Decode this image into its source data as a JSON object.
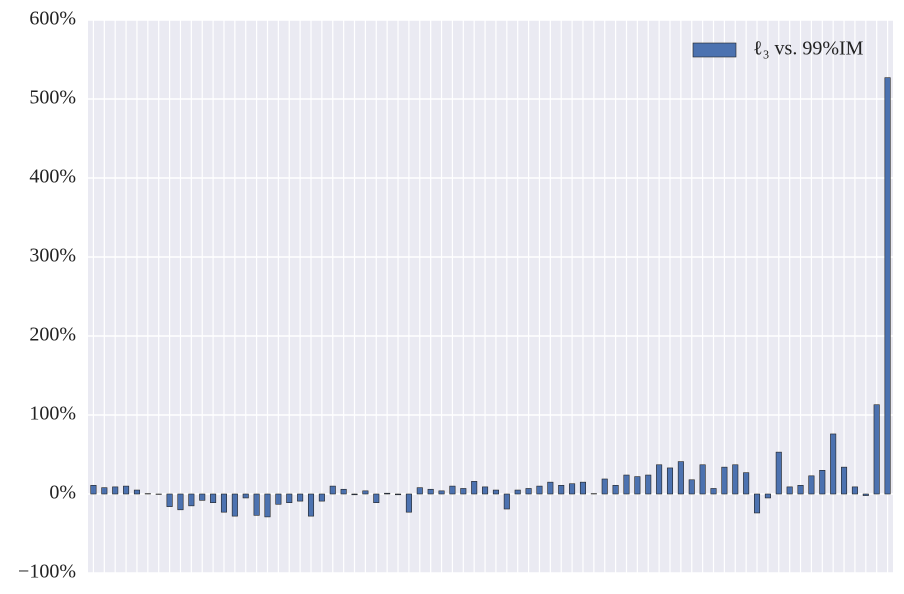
{
  "chart_data": {
    "type": "bar",
    "categories": [
      null,
      null,
      null,
      null,
      null,
      null,
      null,
      null,
      null,
      null,
      null,
      null,
      null,
      null,
      null,
      null,
      null,
      null,
      null,
      null,
      null,
      null,
      null,
      null,
      null,
      null,
      null,
      null,
      null,
      null,
      null,
      null,
      null,
      null,
      null,
      null,
      null,
      null,
      null,
      null,
      null,
      null,
      null,
      null,
      null,
      null,
      null,
      null,
      null,
      null,
      null,
      null,
      null,
      null,
      null,
      null,
      null,
      null,
      null,
      null,
      null,
      null,
      null,
      null,
      null,
      null,
      null,
      null,
      null,
      null,
      null,
      null,
      null,
      null
    ],
    "series": [
      {
        "name": "ℓ₃ vs. 99%IM",
        "color": "#4c72b0",
        "values": [
          11,
          8,
          9,
          10,
          5,
          0.5,
          -0.5,
          -16,
          -20,
          -15,
          -8,
          -11,
          -23,
          -28,
          -5,
          -27,
          -29,
          -13,
          -11,
          -9,
          -28,
          -9,
          10,
          6,
          -1,
          4,
          -11,
          1,
          -1,
          -23,
          8,
          6,
          4,
          10,
          7,
          16,
          9,
          5,
          -19,
          5,
          7,
          10,
          15,
          11,
          13,
          15,
          0.5,
          19,
          11,
          24,
          22,
          24,
          37,
          33,
          41,
          18,
          37,
          7,
          34,
          37,
          27,
          -24,
          -5,
          53,
          9,
          11,
          23,
          30,
          76,
          34,
          9,
          -2,
          113,
          527
        ]
      }
    ],
    "ylim": [
      -100,
      600
    ],
    "yticks": [
      {
        "value": -100,
        "label": "−100%"
      },
      {
        "value": 0,
        "label": "0%"
      },
      {
        "value": 100,
        "label": "100%"
      },
      {
        "value": 200,
        "label": "200%"
      },
      {
        "value": 300,
        "label": "300%"
      },
      {
        "value": 400,
        "label": "400%"
      },
      {
        "value": 500,
        "label": "500%"
      },
      {
        "value": 600,
        "label": "600%"
      }
    ],
    "grid": true,
    "legend": "upper right"
  }
}
